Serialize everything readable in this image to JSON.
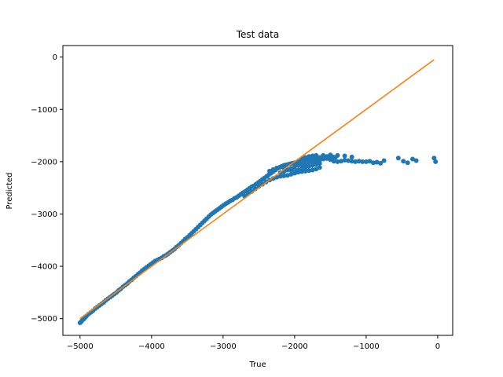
{
  "chart_data": {
    "type": "scatter",
    "title": "Test data",
    "xlabel": "True",
    "ylabel": "Predicted",
    "xlim": [
      -5240,
      210
    ],
    "ylim": [
      -5320,
      220
    ],
    "xticks": [
      -5000,
      -4000,
      -3000,
      -2000,
      -1000,
      0
    ],
    "yticks": [
      0,
      -1000,
      -2000,
      -3000,
      -4000,
      -5000
    ],
    "grid": false,
    "legend": "none",
    "series": [
      {
        "kind": "scatter",
        "color": "#1f77b4",
        "points": [
          [
            -5000,
            -5080
          ],
          [
            -4985,
            -5060
          ],
          [
            -4970,
            -5030
          ],
          [
            -4950,
            -5010
          ],
          [
            -4930,
            -4980
          ],
          [
            -4910,
            -4950
          ],
          [
            -4880,
            -4910
          ],
          [
            -4850,
            -4880
          ],
          [
            -4820,
            -4850
          ],
          [
            -4790,
            -4810
          ],
          [
            -4760,
            -4780
          ],
          [
            -4730,
            -4750
          ],
          [
            -4700,
            -4720
          ],
          [
            -4670,
            -4690
          ],
          [
            -4640,
            -4650
          ],
          [
            -4610,
            -4620
          ],
          [
            -4580,
            -4590
          ],
          [
            -4550,
            -4560
          ],
          [
            -4520,
            -4530
          ],
          [
            -4490,
            -4500
          ],
          [
            -4460,
            -4460
          ],
          [
            -4430,
            -4430
          ],
          [
            -4400,
            -4390
          ],
          [
            -4370,
            -4360
          ],
          [
            -4340,
            -4330
          ],
          [
            -4310,
            -4290
          ],
          [
            -4280,
            -4260
          ],
          [
            -4250,
            -4220
          ],
          [
            -4220,
            -4190
          ],
          [
            -4190,
            -4150
          ],
          [
            -4160,
            -4120
          ],
          [
            -4130,
            -4080
          ],
          [
            -4100,
            -4050
          ],
          [
            -4070,
            -4020
          ],
          [
            -4040,
            -3990
          ],
          [
            -4010,
            -3960
          ],
          [
            -3980,
            -3930
          ],
          [
            -3950,
            -3900
          ],
          [
            -3920,
            -3880
          ],
          [
            -3890,
            -3860
          ],
          [
            -3860,
            -3840
          ],
          [
            -3830,
            -3810
          ],
          [
            -3800,
            -3790
          ],
          [
            -3770,
            -3760
          ],
          [
            -3740,
            -3730
          ],
          [
            -3710,
            -3700
          ],
          [
            -3680,
            -3670
          ],
          [
            -3650,
            -3630
          ],
          [
            -3620,
            -3600
          ],
          [
            -3590,
            -3560
          ],
          [
            -3560,
            -3520
          ],
          [
            -3530,
            -3480
          ],
          [
            -3500,
            -3450
          ],
          [
            -3470,
            -3410
          ],
          [
            -3440,
            -3370
          ],
          [
            -3410,
            -3330
          ],
          [
            -3380,
            -3290
          ],
          [
            -3350,
            -3250
          ],
          [
            -3320,
            -3210
          ],
          [
            -3290,
            -3170
          ],
          [
            -3260,
            -3130
          ],
          [
            -3230,
            -3090
          ],
          [
            -3200,
            -3050
          ],
          [
            -3170,
            -3010
          ],
          [
            -3140,
            -2980
          ],
          [
            -3110,
            -2950
          ],
          [
            -3080,
            -2920
          ],
          [
            -3050,
            -2890
          ],
          [
            -3020,
            -2860
          ],
          [
            -2990,
            -2830
          ],
          [
            -2960,
            -2800
          ],
          [
            -2930,
            -2780
          ],
          [
            -2900,
            -2750
          ],
          [
            -2870,
            -2730
          ],
          [
            -2840,
            -2700
          ],
          [
            -2810,
            -2680
          ],
          [
            -2780,
            -2650
          ],
          [
            -2750,
            -2620
          ],
          [
            -2720,
            -2590
          ],
          [
            -2690,
            -2570
          ],
          [
            -2660,
            -2540
          ],
          [
            -2630,
            -2510
          ],
          [
            -2600,
            -2480
          ],
          [
            -2570,
            -2460
          ],
          [
            -2540,
            -2430
          ],
          [
            -2510,
            -2400
          ],
          [
            -2480,
            -2370
          ],
          [
            -2450,
            -2340
          ],
          [
            -2420,
            -2310
          ],
          [
            -2390,
            -2280
          ],
          [
            -2360,
            -2250
          ],
          [
            -2330,
            -2220
          ],
          [
            -2300,
            -2190
          ],
          [
            -2270,
            -2160
          ],
          [
            -2240,
            -2130
          ],
          [
            -2210,
            -2110
          ],
          [
            -2180,
            -2090
          ],
          [
            -2150,
            -2070
          ],
          [
            -2120,
            -2060
          ],
          [
            -2090,
            -2050
          ],
          [
            -2060,
            -2040
          ],
          [
            -2030,
            -2030
          ],
          [
            -2000,
            -2020
          ],
          [
            -1970,
            -2010
          ],
          [
            -1940,
            -2000
          ],
          [
            -1910,
            -1990
          ],
          [
            -1880,
            -1980
          ],
          [
            -1850,
            -1970
          ],
          [
            -1820,
            -1960
          ],
          [
            -1790,
            -1950
          ],
          [
            -1760,
            -1940
          ],
          [
            -1730,
            -1930
          ],
          [
            -1700,
            -1930
          ],
          [
            -1670,
            -1920
          ],
          [
            -1640,
            -1920
          ],
          [
            -1610,
            -1910
          ],
          [
            -1580,
            -1910
          ],
          [
            -1550,
            -1900
          ],
          [
            -1520,
            -1900
          ],
          [
            -1490,
            -1900
          ],
          [
            -1460,
            -1910
          ],
          [
            -1430,
            -1920
          ],
          [
            -2700,
            -2660
          ],
          [
            -2650,
            -2610
          ],
          [
            -2600,
            -2570
          ],
          [
            -2550,
            -2520
          ],
          [
            -2500,
            -2470
          ],
          [
            -2450,
            -2430
          ],
          [
            -2400,
            -2390
          ],
          [
            -2350,
            -2350
          ],
          [
            -2300,
            -2320
          ],
          [
            -2250,
            -2300
          ],
          [
            -2200,
            -2280
          ],
          [
            -2150,
            -2270
          ],
          [
            -2100,
            -2260
          ],
          [
            -2050,
            -2240
          ],
          [
            -2000,
            -2220
          ],
          [
            -1950,
            -2200
          ],
          [
            -1900,
            -2190
          ],
          [
            -1850,
            -2180
          ],
          [
            -1800,
            -2170
          ],
          [
            -1750,
            -2160
          ],
          [
            -1700,
            -2140
          ],
          [
            -1650,
            -2110
          ],
          [
            -2350,
            -2180
          ],
          [
            -2300,
            -2150
          ],
          [
            -2250,
            -2120
          ],
          [
            -2200,
            -2100
          ],
          [
            -2150,
            -2120
          ],
          [
            -2100,
            -2150
          ],
          [
            -2050,
            -2160
          ],
          [
            -2000,
            -2100
          ],
          [
            -1950,
            -2070
          ],
          [
            -1900,
            -2060
          ],
          [
            -1850,
            -2050
          ],
          [
            -1800,
            -2010
          ],
          [
            -1750,
            -2000
          ],
          [
            -1700,
            -1980
          ],
          [
            -1650,
            -1970
          ],
          [
            -1600,
            -1950
          ],
          [
            -1550,
            -1940
          ],
          [
            -1500,
            -1960
          ],
          [
            -1450,
            -1990
          ],
          [
            -1400,
            -2000
          ],
          [
            -1350,
            -1990
          ],
          [
            -1300,
            -1970
          ],
          [
            -1250,
            -1980
          ],
          [
            -1200,
            -1990
          ],
          [
            -1150,
            -2000
          ],
          [
            -1100,
            -1990
          ],
          [
            -1050,
            -2000
          ],
          [
            -1000,
            -2000
          ],
          [
            -950,
            -1990
          ],
          [
            -900,
            -2020
          ],
          [
            -850,
            -2010
          ],
          [
            -800,
            -2030
          ],
          [
            -750,
            -1980
          ],
          [
            -1900,
            -1940
          ],
          [
            -1850,
            -1920
          ],
          [
            -1800,
            -1900
          ],
          [
            -1750,
            -1890
          ],
          [
            -1700,
            -1880
          ],
          [
            -1600,
            -1880
          ],
          [
            -1500,
            -1870
          ],
          [
            -1400,
            -1880
          ],
          [
            -1300,
            -1890
          ],
          [
            -1200,
            -1910
          ],
          [
            -2200,
            -2210
          ],
          [
            -2150,
            -2190
          ],
          [
            -2100,
            -2160
          ],
          [
            -2050,
            -2130
          ],
          [
            -2000,
            -2180
          ],
          [
            -1950,
            -2160
          ],
          [
            -1900,
            -2130
          ],
          [
            -1850,
            -2110
          ],
          [
            -1800,
            -2090
          ],
          [
            -1750,
            -2070
          ],
          [
            -1700,
            -2050
          ],
          [
            -1650,
            -2030
          ],
          [
            -550,
            -1930
          ],
          [
            -480,
            -1990
          ],
          [
            -420,
            -2020
          ],
          [
            -350,
            -1950
          ],
          [
            -300,
            -1980
          ],
          [
            -50,
            -1930
          ],
          [
            -30,
            -2000
          ]
        ]
      },
      {
        "kind": "line",
        "color": "#ff7f0e",
        "points": [
          [
            -5000,
            -5000
          ],
          [
            -50,
            -50
          ]
        ]
      }
    ]
  }
}
